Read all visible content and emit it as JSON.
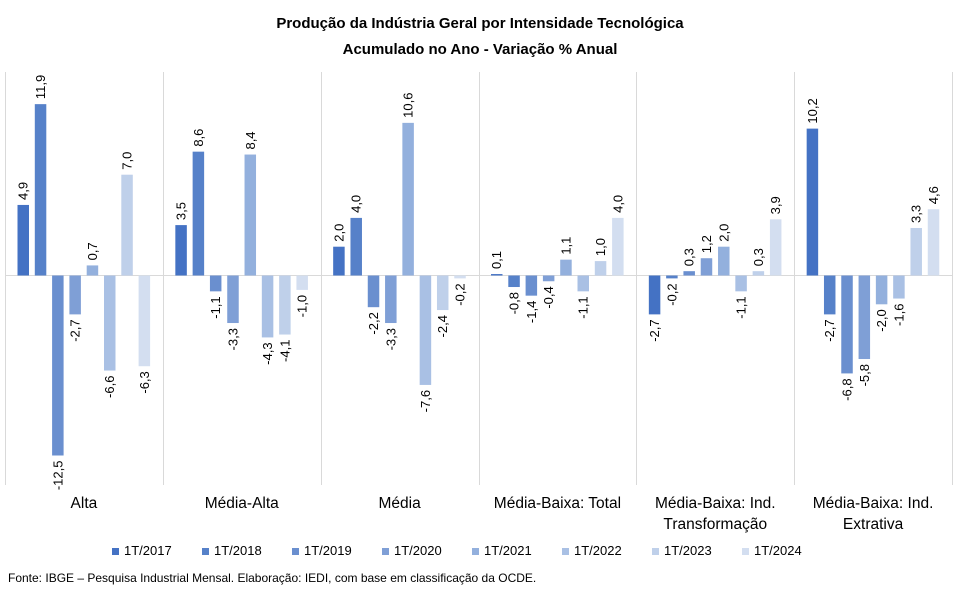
{
  "chart_data": {
    "type": "bar",
    "title": "Produção da Indústria Geral por Intensidade Tecnológica",
    "subtitle": "Acumulado no Ano - Variação % Anual",
    "xlabel": "",
    "ylabel": "",
    "ylim": [
      -15.0,
      16.0
    ],
    "grid": false,
    "legend_position": "bottom",
    "categories": [
      [
        "Alta"
      ],
      [
        "Média-Alta"
      ],
      [
        "Média"
      ],
      [
        "Média-Baixa: Total"
      ],
      [
        "Média-Baixa: Ind.",
        "Transformação"
      ],
      [
        "Média-Baixa: Ind.",
        "Extrativa"
      ]
    ],
    "series": [
      {
        "name": "1T/2017",
        "color": "#4472c4",
        "values": [
          4.9,
          3.5,
          2.0,
          0.1,
          -2.7,
          10.2
        ]
      },
      {
        "name": "1T/2018",
        "color": "#5681c9",
        "values": [
          11.9,
          8.6,
          4.0,
          -0.8,
          -0.2,
          -2.7
        ]
      },
      {
        "name": "1T/2019",
        "color": "#6a8fcf",
        "values": [
          -12.5,
          -1.1,
          -2.2,
          -1.4,
          0.3,
          -6.8
        ]
      },
      {
        "name": "1T/2020",
        "color": "#7f9fd6",
        "values": [
          -2.7,
          -3.3,
          -3.3,
          -0.4,
          1.2,
          -5.8
        ]
      },
      {
        "name": "1T/2021",
        "color": "#93b0dd",
        "values": [
          0.7,
          8.4,
          10.6,
          1.1,
          2.0,
          -2.0
        ]
      },
      {
        "name": "1T/2022",
        "color": "#a9c0e4",
        "values": [
          -6.6,
          -4.3,
          -7.6,
          -1.1,
          -1.1,
          -1.6
        ]
      },
      {
        "name": "1T/2023",
        "color": "#bfd0ea",
        "values": [
          7.0,
          -4.1,
          -2.4,
          1.0,
          0.3,
          3.3
        ]
      },
      {
        "name": "1T/2024",
        "color": "#d3def0",
        "values": [
          -6.3,
          -1.0,
          -0.2,
          4.0,
          3.9,
          4.6
        ]
      }
    ]
  },
  "source": "Fonte: IBGE – Pesquisa Industrial Mensal. Elaboração: IEDI, com base em classificação da OCDE."
}
